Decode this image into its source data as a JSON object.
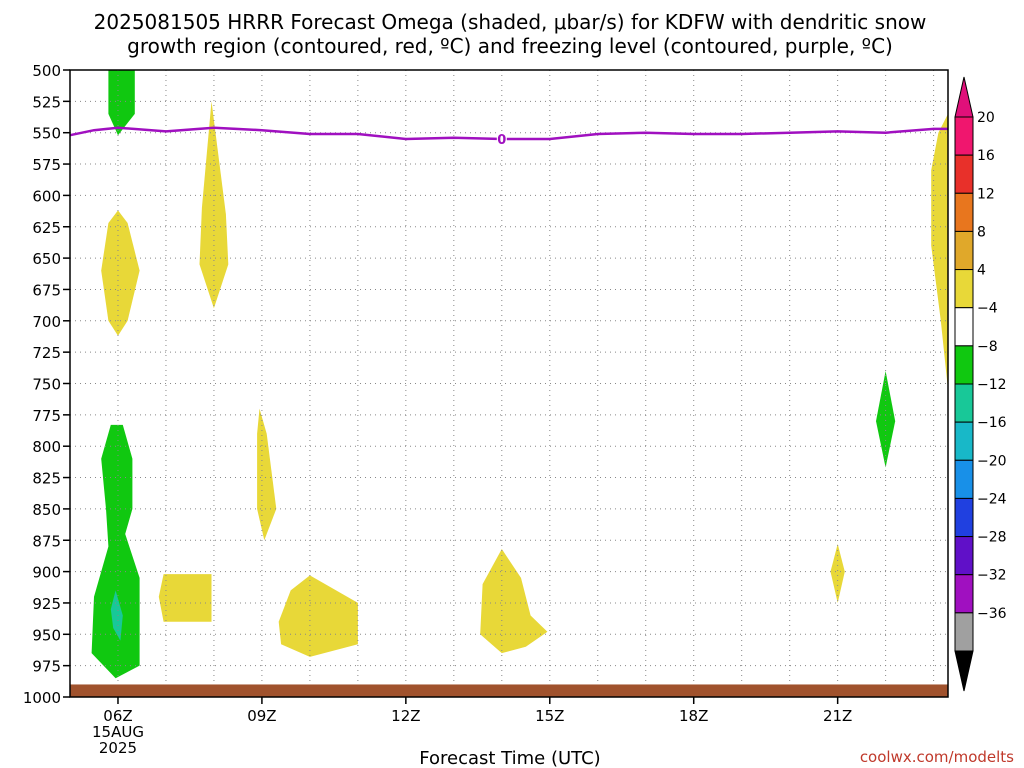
{
  "chart_data": {
    "type": "heatmap",
    "title_line1": "2025081505 HRRR Forecast Omega (shaded, μbar/s) for KDFW with dendritic snow",
    "title_line2": "growth region (contoured, red, ºC) and freezing level (contoured, purple, ºC)",
    "xlabel": "Forecast Time (UTC)",
    "credit": "coolwx.com/modelts",
    "x_hours": [
      5,
      23.3
    ],
    "y_pressure_range": [
      500,
      1000
    ],
    "y_ticks": [
      "500",
      "525",
      "550",
      "575",
      "600",
      "625",
      "650",
      "675",
      "700",
      "725",
      "750",
      "775",
      "800",
      "825",
      "850",
      "875",
      "900",
      "925",
      "950",
      "975",
      "1000"
    ],
    "x_ticks": [
      {
        "hour": 6,
        "label": "06Z",
        "date": "15AUG",
        "year": "2025"
      },
      {
        "hour": 9,
        "label": "09Z"
      },
      {
        "hour": 12,
        "label": "12Z"
      },
      {
        "hour": 15,
        "label": "15Z"
      },
      {
        "hour": 18,
        "label": "18Z"
      },
      {
        "hour": 21,
        "label": "21Z"
      }
    ],
    "colorbar": {
      "labels": [
        "20",
        "16",
        "12",
        "8",
        "4",
        "−4",
        "−8",
        "−12",
        "−16",
        "−20",
        "−24",
        "−28",
        "−32",
        "−36"
      ],
      "colors": [
        "#f0166e",
        "#e8302a",
        "#e8761e",
        "#e0a82a",
        "#e8d838",
        "#ffffff",
        "#10c810",
        "#18c898",
        "#18b8c8",
        "#1890e8",
        "#2040e0",
        "#6010c8",
        "#a010c0",
        "#a0a0a0"
      ],
      "top_color": "#e0107a",
      "bottom_color": "#000000"
    },
    "freezing_level": {
      "color": "#a010c0",
      "label": "0",
      "points": [
        [
          5.0,
          552
        ],
        [
          5.5,
          548
        ],
        [
          6.0,
          546
        ],
        [
          7.0,
          549
        ],
        [
          8.0,
          546
        ],
        [
          9.0,
          548
        ],
        [
          10.0,
          551
        ],
        [
          11.0,
          551
        ],
        [
          12.0,
          555
        ],
        [
          13.0,
          554
        ],
        [
          14.0,
          555
        ],
        [
          15.0,
          555
        ],
        [
          16.0,
          551
        ],
        [
          17.0,
          550
        ],
        [
          18.0,
          551
        ],
        [
          19.0,
          551
        ],
        [
          20.0,
          550
        ],
        [
          21.0,
          549
        ],
        [
          22.0,
          550
        ],
        [
          23.0,
          547
        ],
        [
          23.3,
          547
        ]
      ]
    },
    "omega_regions": [
      {
        "color": "#10c810",
        "points": [
          [
            5.8,
            500
          ],
          [
            6.35,
            500
          ],
          [
            6.35,
            535
          ],
          [
            6.0,
            552
          ],
          [
            5.8,
            535
          ]
        ]
      },
      {
        "color": "#e8d838",
        "points": [
          [
            6.0,
            612
          ],
          [
            6.2,
            622
          ],
          [
            6.45,
            660
          ],
          [
            6.2,
            700
          ],
          [
            6.0,
            712
          ],
          [
            5.8,
            700
          ],
          [
            5.65,
            660
          ],
          [
            5.8,
            622
          ]
        ]
      },
      {
        "color": "#e8d838",
        "points": [
          [
            7.95,
            525
          ],
          [
            8.25,
            615
          ],
          [
            8.3,
            655
          ],
          [
            8.0,
            690
          ],
          [
            7.7,
            655
          ],
          [
            7.75,
            610
          ]
        ]
      },
      {
        "color": "#e8d838",
        "points": [
          [
            8.95,
            770
          ],
          [
            9.1,
            790
          ],
          [
            9.3,
            850
          ],
          [
            9.05,
            875
          ],
          [
            8.9,
            850
          ],
          [
            8.9,
            790
          ]
        ]
      },
      {
        "color": "#10c810",
        "points": [
          [
            6.1,
            783
          ],
          [
            6.3,
            810
          ],
          [
            6.3,
            850
          ],
          [
            6.15,
            870
          ],
          [
            6.45,
            905
          ],
          [
            6.45,
            975
          ],
          [
            5.95,
            985
          ],
          [
            5.45,
            965
          ],
          [
            5.5,
            920
          ],
          [
            5.8,
            880
          ],
          [
            5.75,
            850
          ],
          [
            5.65,
            810
          ],
          [
            5.85,
            783
          ]
        ]
      },
      {
        "color": "#18c898",
        "points": [
          [
            5.95,
            915
          ],
          [
            6.1,
            935
          ],
          [
            6.05,
            955
          ],
          [
            5.9,
            945
          ],
          [
            5.85,
            930
          ]
        ]
      },
      {
        "color": "#e8d838",
        "points": [
          [
            6.95,
            902
          ],
          [
            7.95,
            902
          ],
          [
            7.95,
            940
          ],
          [
            6.95,
            940
          ],
          [
            6.85,
            920
          ]
        ]
      },
      {
        "color": "#e8d838",
        "points": [
          [
            10.0,
            903
          ],
          [
            11.0,
            925
          ],
          [
            11.0,
            958
          ],
          [
            10.0,
            968
          ],
          [
            9.4,
            958
          ],
          [
            9.35,
            940
          ],
          [
            9.6,
            915
          ]
        ]
      },
      {
        "color": "#e8d838",
        "points": [
          [
            14.0,
            882
          ],
          [
            14.4,
            905
          ],
          [
            14.6,
            935
          ],
          [
            14.95,
            948
          ],
          [
            14.5,
            960
          ],
          [
            14.0,
            965
          ],
          [
            13.55,
            950
          ],
          [
            13.6,
            910
          ]
        ]
      },
      {
        "color": "#e8d838",
        "points": [
          [
            21.0,
            878
          ],
          [
            21.15,
            900
          ],
          [
            21.0,
            925
          ],
          [
            20.85,
            900
          ]
        ]
      },
      {
        "color": "#10c810",
        "points": [
          [
            22.0,
            740
          ],
          [
            22.2,
            780
          ],
          [
            22.0,
            817
          ],
          [
            21.8,
            780
          ]
        ]
      },
      {
        "color": "#e8d838",
        "points": [
          [
            23.3,
            535
          ],
          [
            23.3,
            755
          ],
          [
            23.15,
            700
          ],
          [
            22.95,
            640
          ],
          [
            22.95,
            580
          ],
          [
            23.1,
            550
          ]
        ]
      }
    ],
    "surface": {
      "color": "#a0522d",
      "pressure_top": 990
    }
  }
}
